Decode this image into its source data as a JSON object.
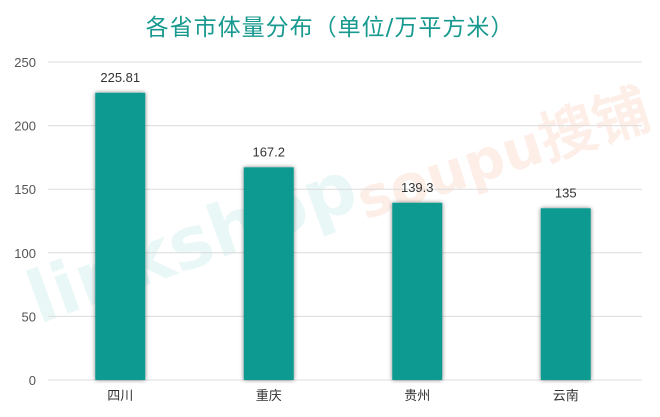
{
  "chart_data": {
    "type": "bar",
    "title": "各省市体量分布（单位/万平方米）",
    "categories": [
      "四川",
      "重庆",
      "贵州",
      "云南"
    ],
    "values": [
      225.81,
      167.2,
      139.3,
      135
    ],
    "data_labels": [
      "225.81",
      "167.2",
      "139.3",
      "135"
    ],
    "xlabel": "",
    "ylabel": "",
    "ylim": [
      0,
      250
    ],
    "yticks": [
      0,
      50,
      100,
      150,
      200,
      250
    ],
    "grid": true,
    "legend": "none",
    "bar_color": "#0e9a90",
    "title_color": "#17998f"
  },
  "watermarks": [
    "linkshop 联商网",
    "soupu.com 搜铺"
  ]
}
